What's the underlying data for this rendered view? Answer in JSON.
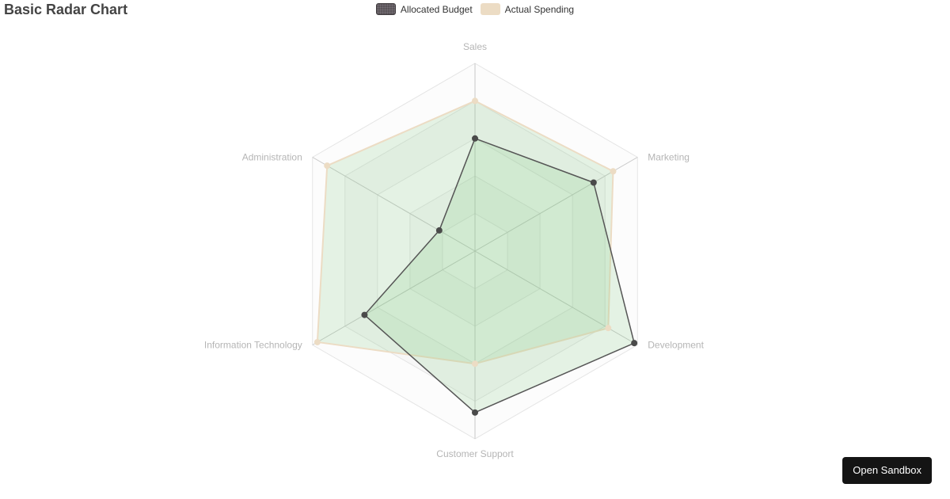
{
  "chart_data": {
    "type": "radar",
    "title": "Basic Radar Chart",
    "categories": [
      "Sales",
      "Marketing",
      "Development",
      "Customer Support",
      "Information Technology",
      "Administration"
    ],
    "max": 1,
    "grid_levels": 5,
    "series": [
      {
        "name": "Allocated Budget",
        "values": [
          0.6,
          0.73,
          0.98,
          0.86,
          0.68,
          0.22
        ],
        "color": "#555555",
        "fill": "rgba(120, 200, 120, 0.18)"
      },
      {
        "name": "Actual Spending",
        "values": [
          0.8,
          0.85,
          0.82,
          0.6,
          0.97,
          0.91
        ],
        "color": "#ecdcc4",
        "fill": "rgba(120, 200, 120, 0.18)"
      }
    ],
    "legend_position": "top-center"
  },
  "ui": {
    "open_sandbox_label": "Open Sandbox"
  }
}
